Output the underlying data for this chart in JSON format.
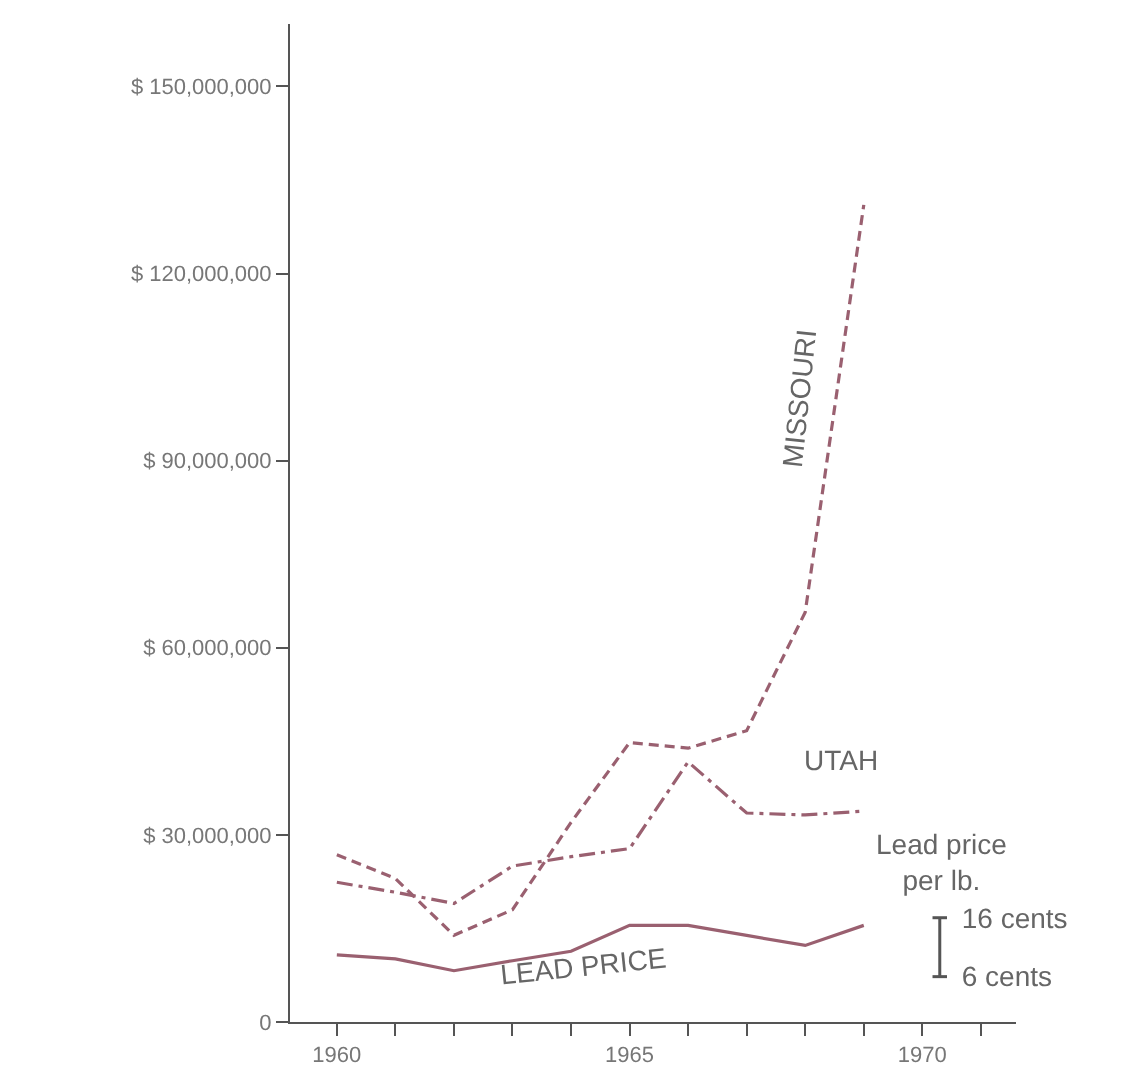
{
  "chart_data": {
    "type": "line",
    "x": [
      1960,
      1961,
      1962,
      1963,
      1964,
      1965,
      1966,
      1967,
      1968,
      1969
    ],
    "series": [
      {
        "name": "MISSOURI",
        "color": "#9a6070",
        "line_style": "dashed",
        "values": [
          26800000,
          23000000,
          13900000,
          18000000,
          32000000,
          44800000,
          43900000,
          46700000,
          65700000,
          131000000
        ]
      },
      {
        "name": "UTAH",
        "color": "#9a6070",
        "line_style": "dashdot",
        "values": [
          22400000,
          20800000,
          19000000,
          25000000,
          26500000,
          27800000,
          41700000,
          33500000,
          33200000,
          33800000
        ]
      },
      {
        "name": "LEAD PRICE",
        "color": "#9a6070",
        "line_style": "solid",
        "axis": "y2",
        "values": [
          9.7,
          9.0,
          7.0,
          8.7,
          10.3,
          14.7,
          14.7,
          13.0,
          11.3,
          14.7
        ]
      }
    ],
    "xlim": [
      1959.2,
      1971.6
    ],
    "xticks": [
      1960,
      {
        "value": 1961,
        "label": null
      },
      {
        "value": 1962,
        "label": null
      },
      {
        "value": 1963,
        "label": null
      },
      {
        "value": 1964,
        "label": null
      },
      1965,
      {
        "value": 1966,
        "label": null
      },
      {
        "value": 1967,
        "label": null
      },
      {
        "value": 1968,
        "label": null
      },
      {
        "value": 1969,
        "label": null
      },
      1970,
      {
        "value": 1971,
        "label": null
      }
    ],
    "ylim": [
      0,
      160000000
    ],
    "yticks": [
      0,
      {
        "value": 30000000,
        "label": "$ 30,000,000"
      },
      {
        "value": 60000000,
        "label": "$ 60,000,000"
      },
      {
        "value": 90000000,
        "label": "$ 90,000,000"
      },
      {
        "value": 120000000,
        "label": "$ 120,000,000"
      },
      {
        "value": 150000000,
        "label": "$ 150,000,000"
      }
    ],
    "y2label": "Lead price\nper lb.",
    "y2lim": [
      -1.7,
      167.7
    ],
    "y2ticks": [
      {
        "value": 16,
        "label": "16 cents"
      },
      {
        "value": 6,
        "label": "6 cents"
      }
    ],
    "legend": false,
    "marker": "none"
  }
}
